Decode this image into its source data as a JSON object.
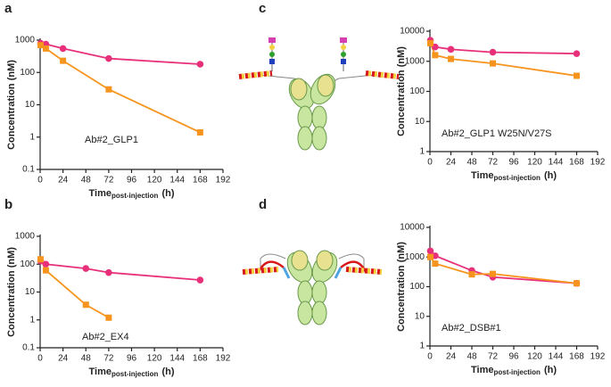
{
  "chart_data": [
    {
      "type": "line",
      "panel_label": "a",
      "ylabel": "Concentration (nM)",
      "xlabel_main": "Time",
      "xlabel_sub": "post-injection",
      "xlabel_unit": "(h)",
      "annotation": "Ab#2_GLP1",
      "log_y": true,
      "x": [
        0.5,
        6,
        24,
        72,
        168
      ],
      "xlim": [
        0,
        192
      ],
      "xticks": [
        0,
        24,
        48,
        72,
        96,
        120,
        144,
        168,
        192
      ],
      "ylim": [
        0.1,
        1000
      ],
      "yticks": [
        0.1,
        1,
        10,
        100,
        1000
      ],
      "series": [
        {
          "color": "#e8307a",
          "marker": "circle",
          "values": [
            800,
            750,
            550,
            270,
            180
          ]
        },
        {
          "color": "#f7941d",
          "marker": "square",
          "values": [
            700,
            550,
            230,
            30,
            1.4
          ]
        }
      ]
    },
    {
      "type": "line",
      "panel_label": "b",
      "ylabel": "Concentration (nM)",
      "xlabel_main": "Time",
      "xlabel_sub": "post-injection",
      "xlabel_unit": "(h)",
      "annotation": "Ab#2_EX4",
      "log_y": true,
      "x": [
        0.5,
        6,
        48,
        72,
        168
      ],
      "xlim": [
        0,
        192
      ],
      "xticks": [
        0,
        24,
        48,
        72,
        96,
        120,
        144,
        168,
        192
      ],
      "ylim": [
        0.1,
        1000
      ],
      "yticks": [
        0.1,
        1,
        10,
        100,
        1000
      ],
      "series": [
        {
          "color": "#e8307a",
          "marker": "circle",
          "values": [
            130,
            100,
            70,
            50,
            27
          ]
        },
        {
          "color": "#f7941d",
          "marker": "square",
          "values": [
            150,
            60,
            3.5,
            1.2,
            null
          ]
        }
      ]
    },
    {
      "type": "line",
      "panel_label": "c",
      "ylabel": "Concentration (nM)",
      "xlabel_main": "Time",
      "xlabel_sub": "post-injection",
      "xlabel_unit": "(h)",
      "annotation": "Ab#2_GLP1 W25N/V27S",
      "log_y": true,
      "x": [
        0.5,
        6,
        24,
        72,
        168
      ],
      "xlim": [
        0,
        192
      ],
      "xticks": [
        0,
        24,
        48,
        72,
        96,
        120,
        144,
        168,
        192
      ],
      "ylim": [
        1,
        10000
      ],
      "yticks": [
        1,
        10,
        100,
        1000,
        10000
      ],
      "series": [
        {
          "color": "#e8307a",
          "marker": "circle",
          "values": [
            5000,
            3000,
            2500,
            2000,
            1800
          ]
        },
        {
          "color": "#f7941d",
          "marker": "square",
          "values": [
            4000,
            1600,
            1200,
            850,
            330
          ]
        }
      ]
    },
    {
      "type": "line",
      "panel_label": "d",
      "ylabel": "Concentration (nM)",
      "xlabel_main": "Time",
      "xlabel_sub": "post-injection",
      "xlabel_unit": "(h)",
      "annotation": "Ab#2_DSB#1",
      "log_y": true,
      "x": [
        0.5,
        6,
        48,
        72,
        168
      ],
      "xlim": [
        0,
        192
      ],
      "xticks": [
        0,
        24,
        48,
        72,
        96,
        120,
        144,
        168,
        192
      ],
      "ylim": [
        1,
        10000
      ],
      "yticks": [
        1,
        10,
        100,
        1000,
        10000
      ],
      "series": [
        {
          "color": "#e8307a",
          "marker": "circle",
          "values": [
            1600,
            1100,
            350,
            210,
            130
          ]
        },
        {
          "color": "#f7941d",
          "marker": "square",
          "values": [
            1000,
            600,
            260,
            270,
            130
          ]
        }
      ]
    }
  ]
}
